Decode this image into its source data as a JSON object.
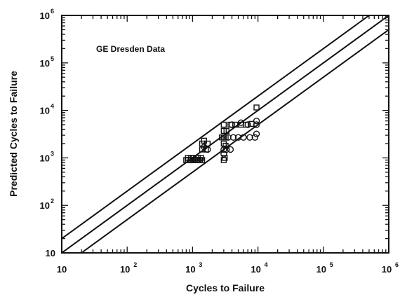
{
  "chart_data": {
    "type": "scatter",
    "title": "",
    "annotation": "GE Dresden Data",
    "xlabel": "Cycles to Failure",
    "ylabel": "Predicted Cycles to Failure",
    "x_scale": "log",
    "y_scale": "log",
    "xlim": [
      10,
      1000000
    ],
    "ylim": [
      10,
      1000000
    ],
    "x_tick_labels": [
      {
        "value": 10,
        "base": "10",
        "exp": ""
      },
      {
        "value": 100,
        "base": "10",
        "exp": "2"
      },
      {
        "value": 1000,
        "base": "10",
        "exp": "3"
      },
      {
        "value": 10000,
        "base": "10",
        "exp": "4"
      },
      {
        "value": 100000,
        "base": "10",
        "exp": "5"
      },
      {
        "value": 1000000,
        "base": "10",
        "exp": "6"
      }
    ],
    "y_tick_labels": [
      {
        "value": 10,
        "base": "10",
        "exp": ""
      },
      {
        "value": 100,
        "base": "10",
        "exp": "2"
      },
      {
        "value": 1000,
        "base": "10",
        "exp": "3"
      },
      {
        "value": 10000,
        "base": "10",
        "exp": "4"
      },
      {
        "value": 100000,
        "base": "10",
        "exp": "5"
      },
      {
        "value": 1000000,
        "base": "10",
        "exp": "6"
      }
    ],
    "grid": false,
    "reference_lines": [
      {
        "factor": 2,
        "points": [
          [
            10,
            20
          ],
          [
            1000000,
            2000000
          ]
        ]
      },
      {
        "factor": 1,
        "points": [
          [
            10,
            10
          ],
          [
            1000000,
            1000000
          ]
        ]
      },
      {
        "factor": 0.5,
        "points": [
          [
            20,
            10
          ],
          [
            1000000,
            500000
          ]
        ]
      }
    ],
    "series": [
      {
        "marker": "square",
        "points": [
          [
            800,
            900
          ],
          [
            850,
            900
          ],
          [
            900,
            900
          ],
          [
            950,
            900
          ],
          [
            1000,
            900
          ],
          [
            1050,
            900
          ],
          [
            1100,
            900
          ],
          [
            1150,
            900
          ],
          [
            1200,
            900
          ],
          [
            1250,
            900
          ],
          [
            1300,
            900
          ],
          [
            1400,
            900
          ],
          [
            850,
            1000
          ],
          [
            950,
            1000
          ],
          [
            1050,
            1000
          ],
          [
            1200,
            1000
          ],
          [
            1350,
            1000
          ],
          [
            1400,
            1500
          ],
          [
            1400,
            2000
          ],
          [
            1500,
            2300
          ],
          [
            1600,
            1500
          ],
          [
            1700,
            2000
          ],
          [
            2800,
            2700
          ],
          [
            3000,
            2700
          ],
          [
            3200,
            2700
          ],
          [
            3000,
            2000
          ],
          [
            3200,
            1800
          ],
          [
            3000,
            3700
          ],
          [
            3300,
            3700
          ],
          [
            3000,
            5000
          ],
          [
            3800,
            5000
          ],
          [
            4500,
            5000
          ],
          [
            5500,
            5000
          ],
          [
            6500,
            5000
          ],
          [
            8000,
            5200
          ],
          [
            9500,
            11500
          ],
          [
            3000,
            900
          ],
          [
            3100,
            1000
          ]
        ]
      },
      {
        "marker": "circle",
        "points": [
          [
            1500,
            1700
          ],
          [
            1700,
            1500
          ],
          [
            3000,
            1500
          ],
          [
            3300,
            1500
          ],
          [
            3800,
            1500
          ],
          [
            3500,
            2700
          ],
          [
            4200,
            2700
          ],
          [
            5000,
            2700
          ],
          [
            6000,
            2700
          ],
          [
            7500,
            2700
          ],
          [
            9000,
            2700
          ],
          [
            9500,
            3200
          ],
          [
            9500,
            5000
          ],
          [
            9500,
            6000
          ],
          [
            7000,
            5000
          ],
          [
            4000,
            5000
          ],
          [
            5500,
            5500
          ],
          [
            3000,
            1200
          ]
        ]
      }
    ]
  }
}
